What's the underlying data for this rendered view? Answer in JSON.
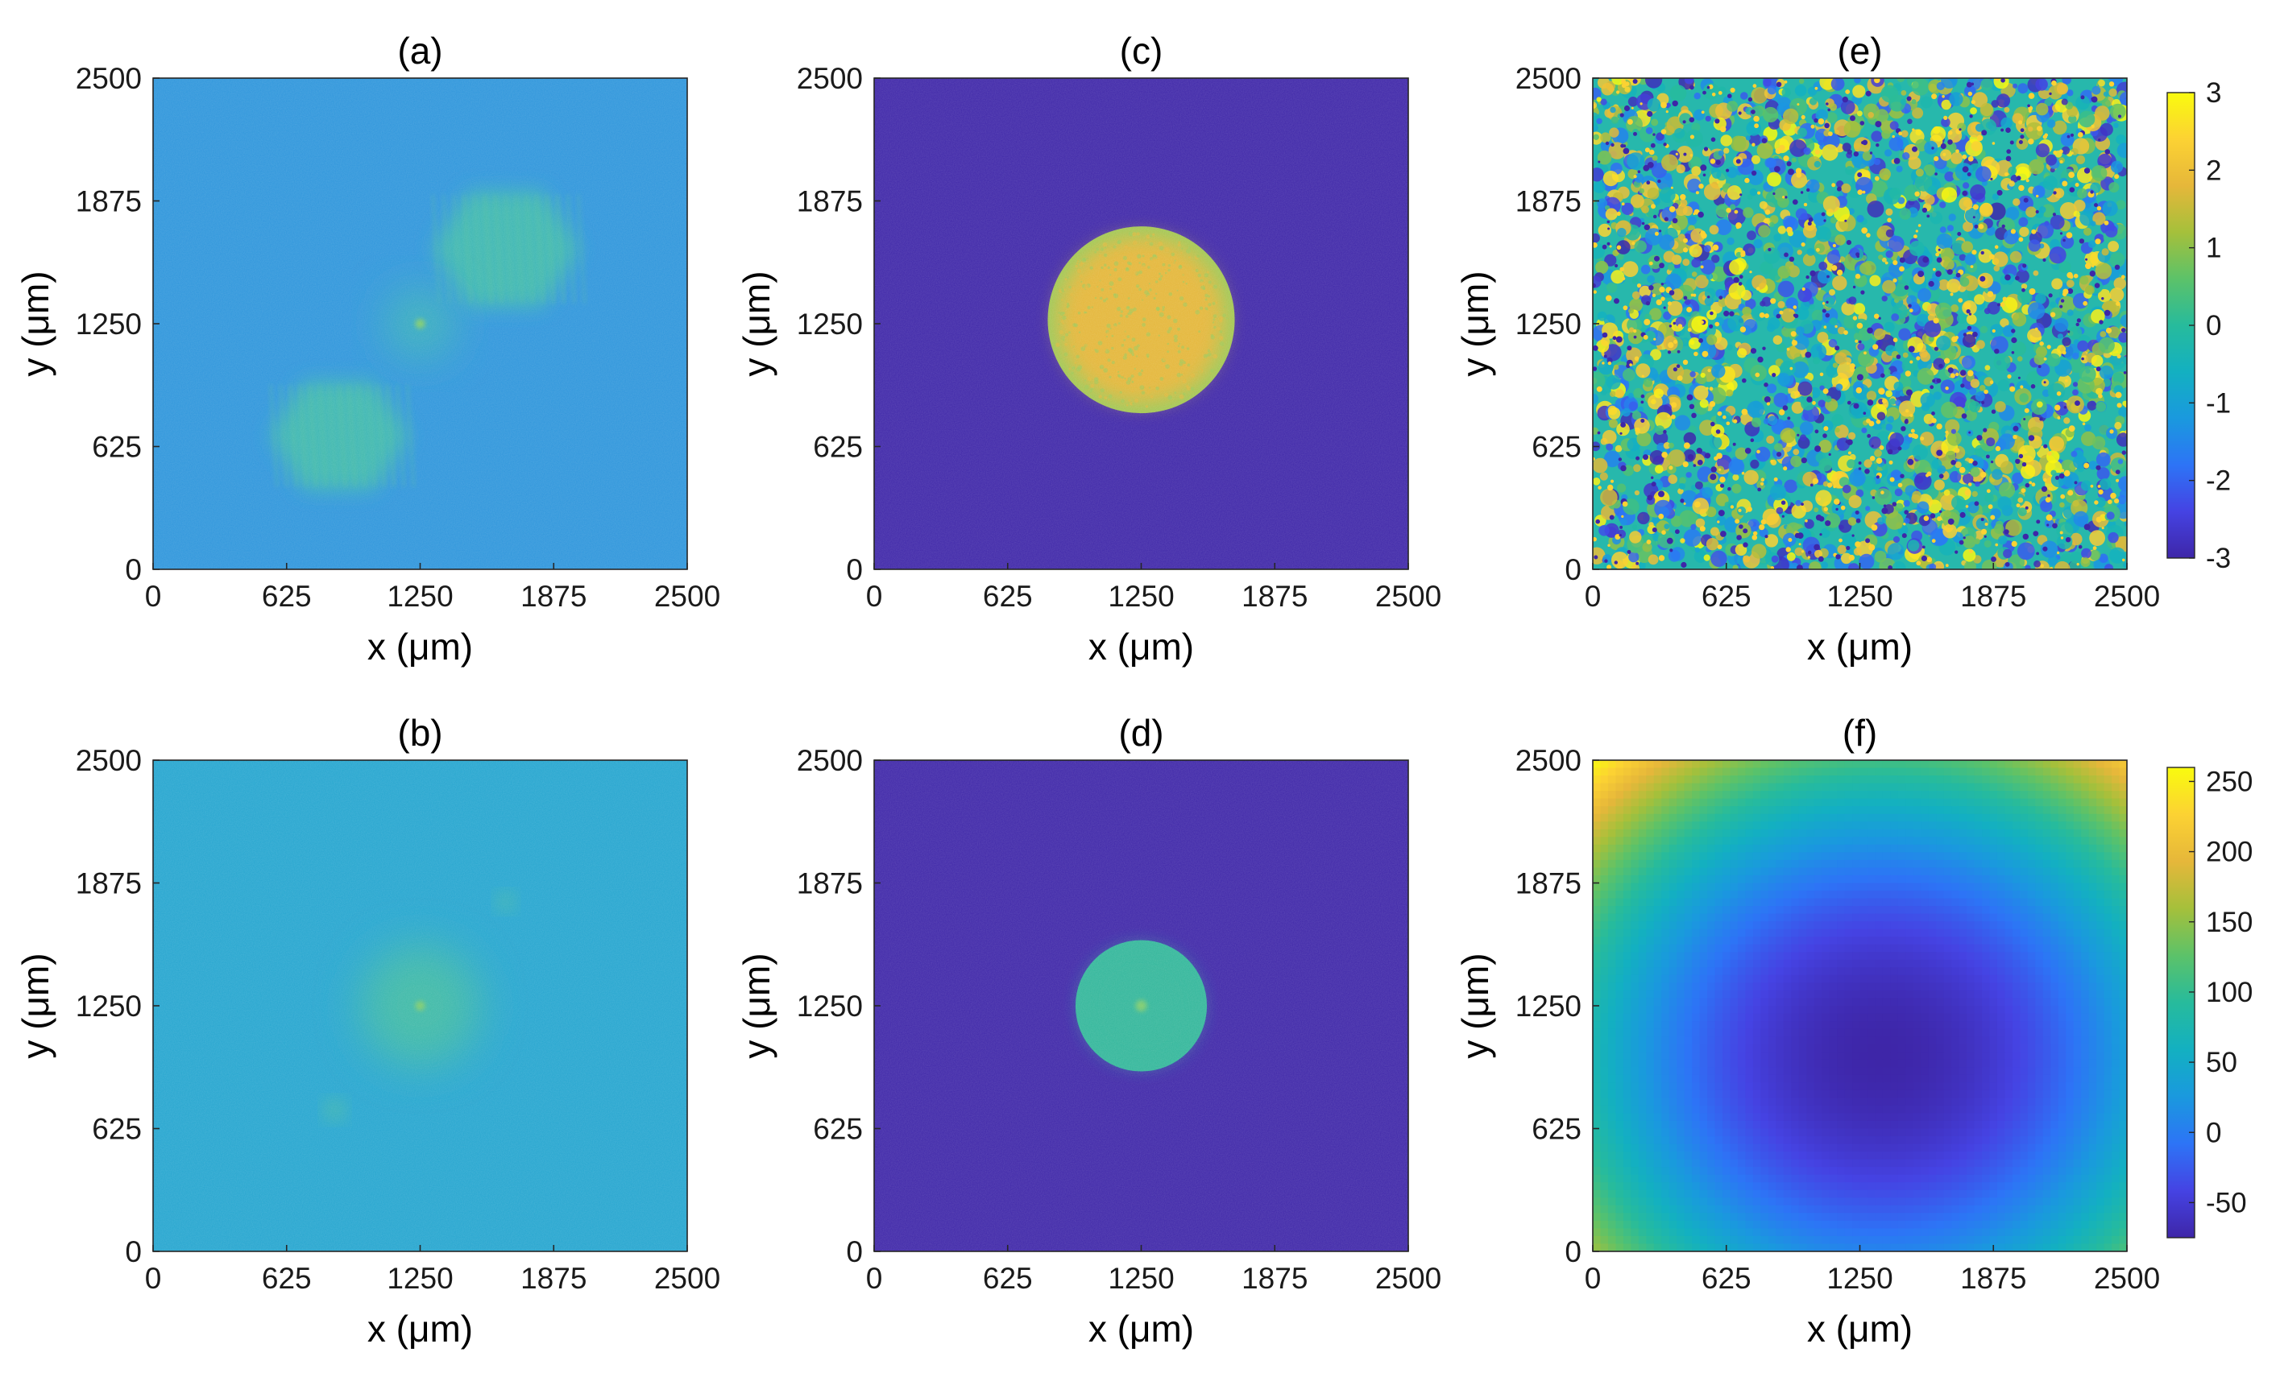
{
  "chart_data": [
    {
      "type": "heatmap",
      "panel": "a",
      "title": "(a)",
      "xlabel": "x (μm)",
      "ylabel": "y (μm)",
      "xlim": [
        0,
        2500
      ],
      "ylim": [
        0,
        2500
      ],
      "xticks": [
        "0",
        "625",
        "1250",
        "1875",
        "2500"
      ],
      "yticks": [
        "0",
        "625",
        "1250",
        "1875",
        "2500"
      ],
      "background_color": "#2d95db",
      "features": [
        {
          "shape": "hexagon",
          "cx": 1650,
          "cy": 1630,
          "r": 340,
          "color": "#3ab6b2"
        },
        {
          "shape": "hexagon",
          "cx": 870,
          "cy": 680,
          "r": 320,
          "color": "#3ab6b2"
        },
        {
          "shape": "spot",
          "cx": 1250,
          "cy": 1250,
          "r": 160,
          "color": "#37b0b9"
        }
      ]
    },
    {
      "type": "heatmap",
      "panel": "b",
      "title": "(b)",
      "xlabel": "x (μm)",
      "ylabel": "y (μm)",
      "xlim": [
        0,
        2500
      ],
      "ylim": [
        0,
        2500
      ],
      "xticks": [
        "0",
        "625",
        "1250",
        "1875",
        "2500"
      ],
      "yticks": [
        "0",
        "625",
        "1250",
        "1875",
        "2500"
      ],
      "background_color": "#24a5cf",
      "features": [
        {
          "shape": "spot",
          "cx": 1250,
          "cy": 1250,
          "r": 280,
          "color": "#3eb9a6"
        },
        {
          "shape": "dot",
          "cx": 1650,
          "cy": 1780,
          "r": 35,
          "color": "#4cc098"
        },
        {
          "shape": "dot",
          "cx": 850,
          "cy": 720,
          "r": 40,
          "color": "#4cc098"
        }
      ]
    },
    {
      "type": "heatmap",
      "panel": "c",
      "title": "(c)",
      "xlabel": "x (μm)",
      "ylabel": "y (μm)",
      "xlim": [
        0,
        2500
      ],
      "ylim": [
        0,
        2500
      ],
      "xticks": [
        "0",
        "625",
        "1250",
        "1875",
        "2500"
      ],
      "yticks": [
        "0",
        "625",
        "1250",
        "1875",
        "2500"
      ],
      "background_color": "#3e26a8",
      "features": [
        {
          "shape": "disk",
          "cx": 1250,
          "cy": 1270,
          "r": 430,
          "color": "#e4b638",
          "edge_color": "#99c855"
        }
      ]
    },
    {
      "type": "heatmap",
      "panel": "d",
      "title": "(d)",
      "xlabel": "x (μm)",
      "ylabel": "y (μm)",
      "xlim": [
        0,
        2500
      ],
      "ylim": [
        0,
        2500
      ],
      "xticks": [
        "0",
        "625",
        "1250",
        "1875",
        "2500"
      ],
      "yticks": [
        "0",
        "625",
        "1250",
        "1875",
        "2500"
      ],
      "background_color": "#3e26a8",
      "features": [
        {
          "shape": "disk",
          "cx": 1250,
          "cy": 1250,
          "r": 300,
          "color": "#32b69a",
          "edge_color": "#32b69a"
        }
      ]
    },
    {
      "type": "heatmap",
      "panel": "e",
      "title": "(e)",
      "xlabel": "x (μm)",
      "ylabel": "y (μm)",
      "xlim": [
        0,
        2500
      ],
      "ylim": [
        0,
        2500
      ],
      "xticks": [
        "0",
        "625",
        "1250",
        "1875",
        "2500"
      ],
      "yticks": [
        "0",
        "625",
        "1250",
        "1875",
        "2500"
      ],
      "background_color": "#27b8ac",
      "pattern": "random-phase",
      "colorbar": {
        "min": -3,
        "max": 3,
        "ticks": [
          "3",
          "2",
          "1",
          "0",
          "-1",
          "-2",
          "-3"
        ],
        "tick_values": [
          3,
          2,
          1,
          0,
          -1,
          -2,
          -3
        ]
      }
    },
    {
      "type": "heatmap",
      "panel": "f",
      "title": "(f)",
      "xlabel": "x (μm)",
      "ylabel": "y (μm)",
      "xlim": [
        0,
        2500
      ],
      "ylim": [
        0,
        2500
      ],
      "xticks": [
        "0",
        "625",
        "1250",
        "1875",
        "2500"
      ],
      "yticks": [
        "0",
        "625",
        "1250",
        "1875",
        "2500"
      ],
      "pattern": "quadratic-bowl",
      "minimum_at": [
        1350,
        1000
      ],
      "value_range": [
        -75,
        260
      ],
      "colorbar": {
        "min": -75,
        "max": 260,
        "ticks": [
          "250",
          "200",
          "150",
          "100",
          "50",
          "0",
          "-50"
        ],
        "tick_values": [
          250,
          200,
          150,
          100,
          50,
          0,
          -50
        ]
      }
    }
  ],
  "colormap": {
    "name": "parula",
    "stops": [
      "#3e26a8",
      "#4543e3",
      "#2d74f6",
      "#1a99de",
      "#13b0c1",
      "#27bb9c",
      "#5cc269",
      "#a5c03b",
      "#e6b73a",
      "#fcd233",
      "#f9fb0e"
    ]
  }
}
